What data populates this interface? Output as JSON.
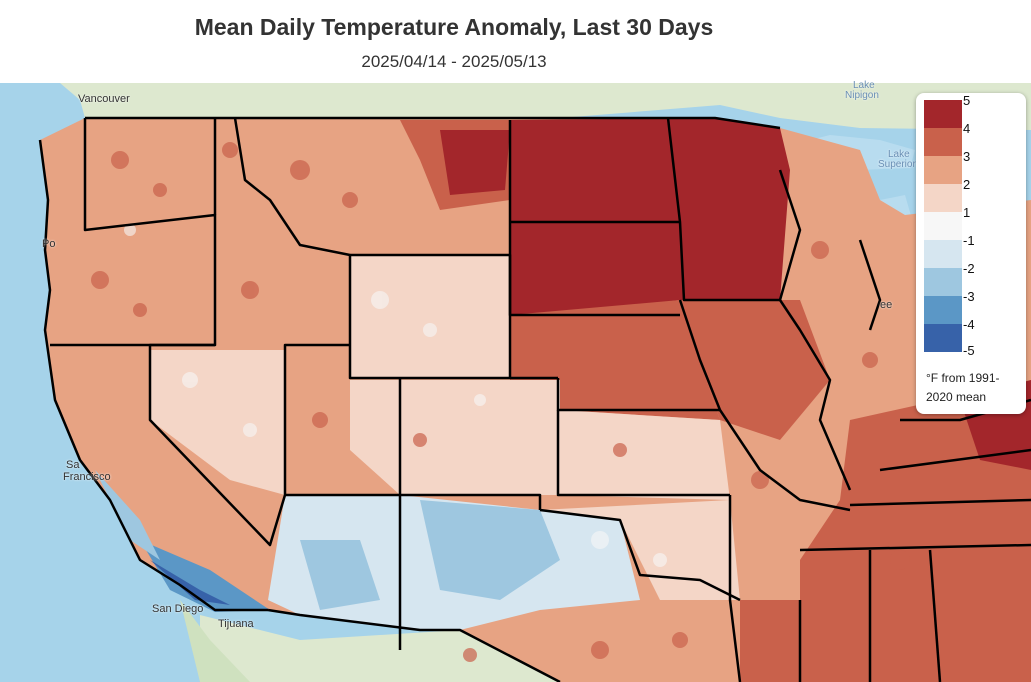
{
  "title": "Mean Daily Temperature Anomaly, Last 30 Days",
  "subtitle": "2025/04/14 - 2025/05/13",
  "legend": {
    "items": [
      {
        "label": "5",
        "color": "#a3262b"
      },
      {
        "label": "4",
        "color": "#c9614b"
      },
      {
        "label": "3",
        "color": "#e7a383"
      },
      {
        "label": "2",
        "color": "#f4d6c7"
      },
      {
        "label": "1",
        "color": "#f7f7f7"
      },
      {
        "label": "-1",
        "color": "#d6e6f0"
      },
      {
        "label": "-2",
        "color": "#9ec7e0"
      },
      {
        "label": "-3",
        "color": "#5b97c6"
      },
      {
        "label": "-4",
        "color": "#3762a9"
      },
      {
        "label": "-5",
        "color": ""
      }
    ],
    "note": "°F from 1991-2020 mean"
  },
  "places": {
    "vancouver": "Vancouver",
    "po": "Po",
    "sf_a": "Sa",
    "sf_b": "Francisco",
    "san_diego": "San Diego",
    "tijuana": "Tijuana",
    "lake_nipigon_a": "Lake",
    "lake_nipigon_b": "Nipigon",
    "lake_sup_a": "Lake",
    "lake_sup_b": "Superior",
    "ee": "ee"
  },
  "colors": {
    "ocean": "#a6d3ea",
    "land": "#dde8cf",
    "lake": "#b8dcef",
    "state_border": "#000000"
  }
}
